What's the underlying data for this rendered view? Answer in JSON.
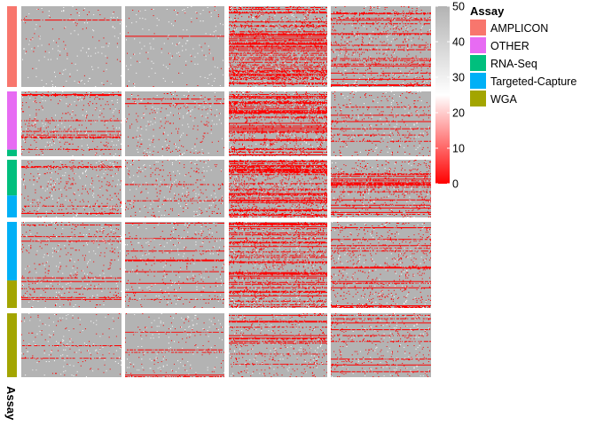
{
  "chart_data": {
    "type": "heatmap",
    "title": "",
    "value_range": [
      0,
      50
    ],
    "colorbar": {
      "ticks": [
        0,
        10,
        20,
        30,
        40,
        50
      ],
      "colors": {
        "low": "#ff0000",
        "mid": "#ffffff",
        "high": "#b3b3b3"
      },
      "mid_value": 25
    },
    "row_annotation": {
      "title": "Assay",
      "categories": [
        {
          "name": "AMPLICON",
          "color": "#f8766d"
        },
        {
          "name": "OTHER",
          "color": "#e76bf3"
        },
        {
          "name": "RNA-Seq",
          "color": "#00bf7d"
        },
        {
          "name": "Targeted-Capture",
          "color": "#00b0f6"
        },
        {
          "name": "WGA",
          "color": "#a3a500"
        }
      ]
    },
    "row_groups": [
      {
        "n_rows": 90,
        "assay_spans": [
          {
            "assay": "AMPLICON",
            "fraction": 1.0
          }
        ]
      },
      {
        "n_rows": 72,
        "assay_spans": [
          {
            "assay": "OTHER",
            "fraction": 0.9
          },
          {
            "assay": "RNA-Seq",
            "fraction": 0.1
          }
        ]
      },
      {
        "n_rows": 64,
        "assay_spans": [
          {
            "assay": "RNA-Seq",
            "fraction": 0.62
          },
          {
            "assay": "Targeted-Capture",
            "fraction": 0.38
          }
        ]
      },
      {
        "n_rows": 96,
        "assay_spans": [
          {
            "assay": "Targeted-Capture",
            "fraction": 0.68
          },
          {
            "assay": "WGA",
            "fraction": 0.32
          }
        ]
      },
      {
        "n_rows": 76,
        "assay_spans": [
          {
            "assay": "WGA",
            "fraction": 1.0
          }
        ]
      }
    ],
    "column_groups": [
      {
        "n_cols": 110,
        "low_value_fraction": 0.05
      },
      {
        "n_cols": 110,
        "low_value_fraction": 0.05
      },
      {
        "n_cols": 110,
        "low_value_fraction": 0.3
      },
      {
        "n_cols": 110,
        "low_value_fraction": 0.22
      }
    ],
    "low_value_fraction_by_group": [
      [
        0.02,
        0.02,
        0.32,
        0.2
      ],
      [
        0.1,
        0.09,
        0.38,
        0.12
      ],
      [
        0.14,
        0.1,
        0.45,
        0.22
      ],
      [
        0.09,
        0.08,
        0.3,
        0.18
      ],
      [
        0.05,
        0.05,
        0.15,
        0.12
      ]
    ],
    "annotation_axis_label": "Assay",
    "legend_placement": "right"
  }
}
